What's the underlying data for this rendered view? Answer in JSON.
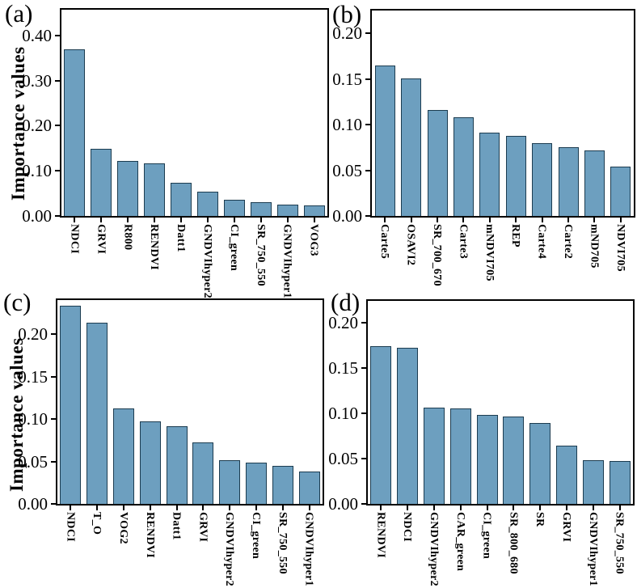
{
  "figure": {
    "background": "#ffffff",
    "bar_fill": "#6d9fbf",
    "bar_edge": "#1c3c50",
    "spine_color": "#000000",
    "text_color": "#000000",
    "y_axis_title": "Importance values"
  },
  "chart_data": [
    {
      "type": "bar",
      "panel": "(a)",
      "ylabel": "Importance values",
      "categories": [
        "NDCI",
        "GRVI",
        "R800",
        "RENDVI",
        "Datt1",
        "GNDVIhyper2",
        "CI_green",
        "SR_750_550",
        "GNDVIhyper1",
        "VOG3"
      ],
      "values": [
        0.37,
        0.148,
        0.122,
        0.117,
        0.073,
        0.054,
        0.035,
        0.031,
        0.026,
        0.024
      ],
      "ytick_labels": [
        "0.00",
        "0.10",
        "0.20",
        "0.30",
        "0.40"
      ],
      "ytick_values": [
        0,
        0.1,
        0.2,
        0.3,
        0.4
      ],
      "ylim": [
        0,
        0.457
      ],
      "grid": false,
      "legend": false
    },
    {
      "type": "bar",
      "panel": "(b)",
      "ylabel": "",
      "categories": [
        "Carte5",
        "OSAVI2",
        "SR_700_670",
        "Carte3",
        "mNDVI705",
        "REP",
        "Carte4",
        "Carte2",
        "mND705",
        "NDVI705"
      ],
      "values": [
        0.165,
        0.151,
        0.116,
        0.108,
        0.091,
        0.088,
        0.08,
        0.075,
        0.072,
        0.054
      ],
      "ytick_labels": [
        "0.00",
        "0.05",
        "0.10",
        "0.15",
        "0.20"
      ],
      "ytick_values": [
        0,
        0.05,
        0.1,
        0.15,
        0.2
      ],
      "ylim": [
        0,
        0.225
      ],
      "grid": false,
      "legend": false
    },
    {
      "type": "bar",
      "panel": "(c)",
      "ylabel": "Importance values",
      "categories": [
        "NDCI",
        "T_O",
        "VOG2",
        "RENDVI",
        "Datt1",
        "GRVI",
        "GNDVIhyper2",
        "CI_green",
        "SR_750_550",
        "GNDVIhyper1"
      ],
      "values": [
        0.233,
        0.213,
        0.112,
        0.097,
        0.091,
        0.072,
        0.051,
        0.049,
        0.045,
        0.038
      ],
      "ytick_labels": [
        "0.00",
        "0.05",
        "0.10",
        "0.15",
        "0.20"
      ],
      "ytick_values": [
        0,
        0.05,
        0.1,
        0.15,
        0.2
      ],
      "ylim": [
        0,
        0.24
      ],
      "grid": false,
      "legend": false
    },
    {
      "type": "bar",
      "panel": "(d)",
      "ylabel": "",
      "categories": [
        "RENDVI",
        "NDCI",
        "GNDVIhyper2",
        "CAR_green",
        "CI_green",
        "SR_800_680",
        "SR",
        "GRVI",
        "GNDVIhyper1",
        "SR_750_550"
      ],
      "values": [
        0.174,
        0.172,
        0.106,
        0.105,
        0.098,
        0.096,
        0.089,
        0.064,
        0.048,
        0.047
      ],
      "ytick_labels": [
        "0.00",
        "0.05",
        "0.10",
        "0.15",
        "0.20"
      ],
      "ytick_values": [
        0,
        0.05,
        0.1,
        0.15,
        0.2
      ],
      "ylim": [
        0,
        0.224
      ],
      "grid": false,
      "legend": false
    }
  ]
}
